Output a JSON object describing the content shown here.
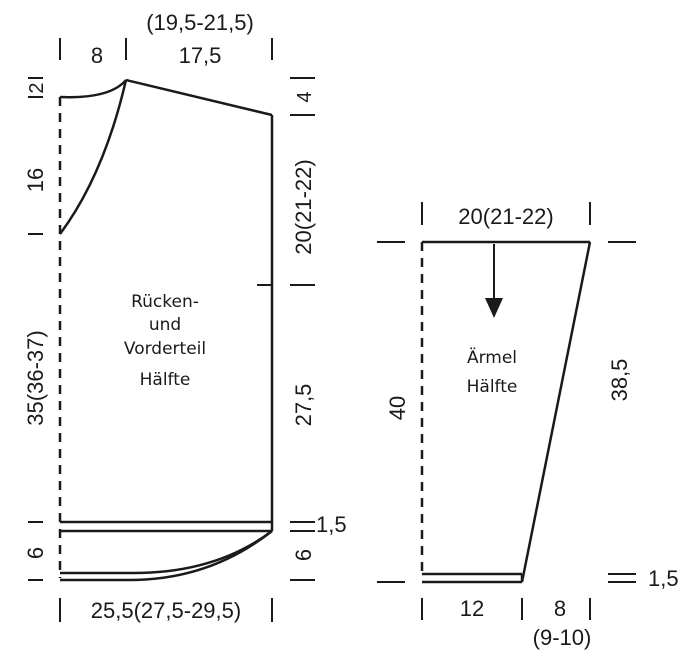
{
  "body_piece": {
    "title_line1": "Rücken-",
    "title_line2": "und",
    "title_line3": "Vorderteil",
    "title_line4": "Hälfte",
    "dim_neck_width": "8",
    "dim_shoulder_width": "17,5",
    "dim_shoulder_width_sizes": "(19,5-21,5)",
    "dim_back_neck_depth": "2",
    "dim_shoulder_slope": "4",
    "dim_front_neck_depth": "16",
    "dim_armhole": "20(21-22)",
    "dim_center_length": "35(36-37)",
    "dim_side_length": "27,5",
    "dim_band_step": "1,5",
    "dim_hem_left": "6",
    "dim_hem_right": "6",
    "dim_bottom_width": "25,5(27,5-29,5)"
  },
  "sleeve_piece": {
    "title_line1": "Ärmel",
    "title_line2": "Hälfte",
    "dim_top_width": "20(21-22)",
    "dim_center_length": "40",
    "dim_side_length": "38,5",
    "dim_cuff": "1,5",
    "dim_bottom_width": "12",
    "dim_increase_width": "8",
    "dim_increase_width_sizes": "(9-10)"
  }
}
